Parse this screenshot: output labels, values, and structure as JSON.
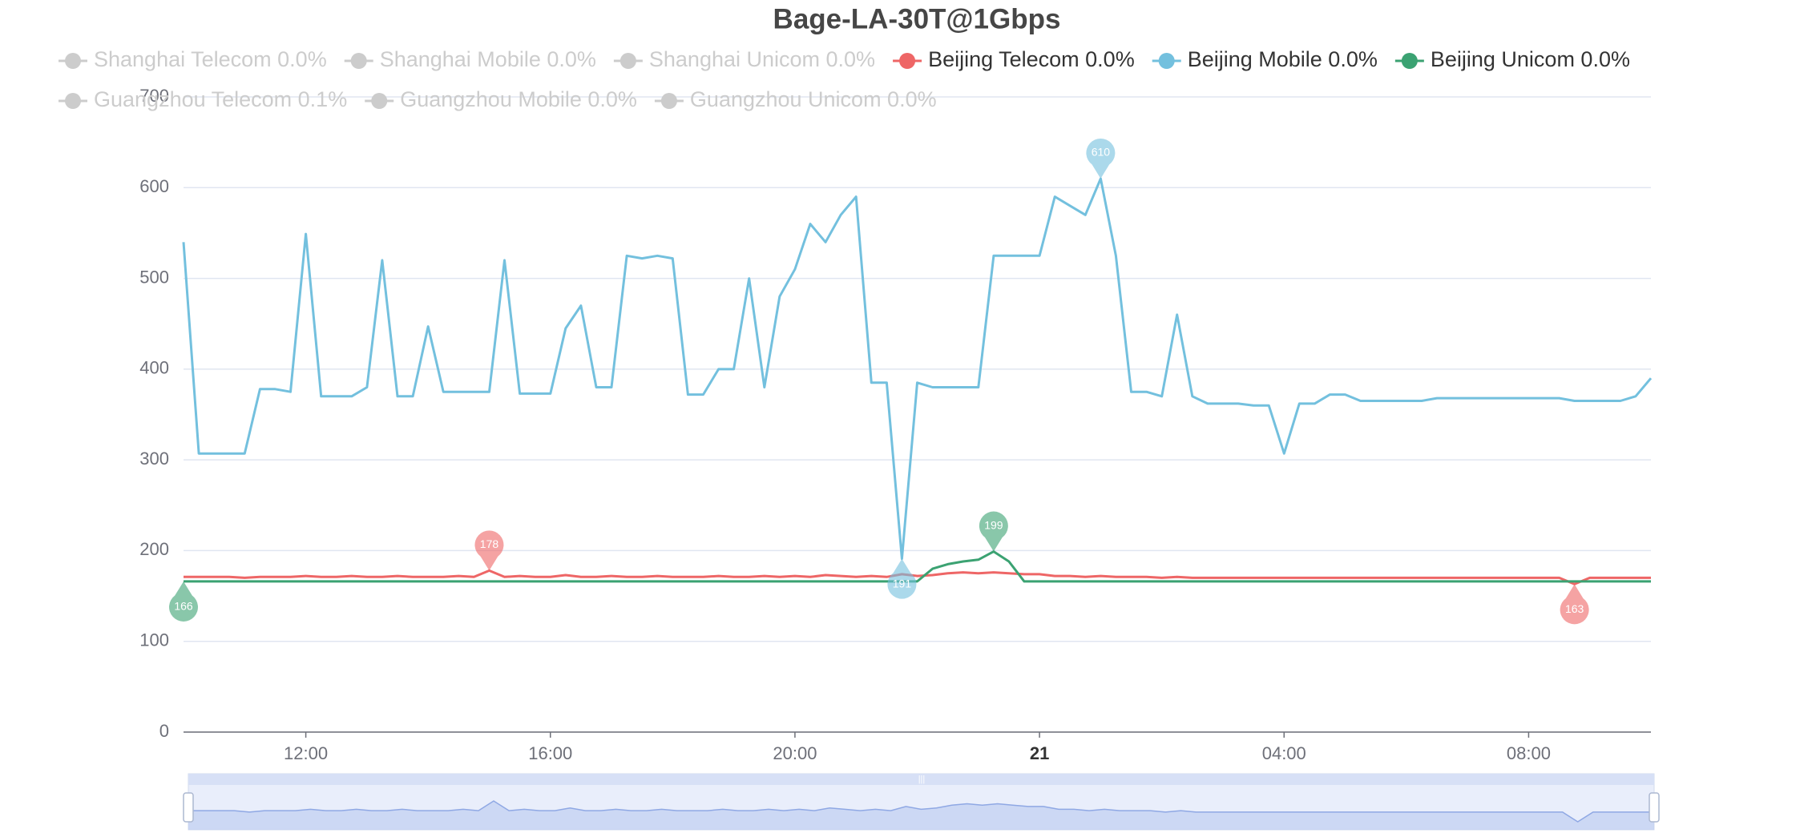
{
  "chart_data": {
    "type": "line",
    "title": "Bage-LA-30T@1Gbps",
    "x": [
      10,
      10.25,
      10.5,
      10.75,
      11,
      11.25,
      11.5,
      11.75,
      12,
      12.25,
      12.5,
      12.75,
      13,
      13.25,
      13.5,
      13.75,
      14,
      14.25,
      14.5,
      14.75,
      15,
      15.25,
      15.5,
      15.75,
      16,
      16.25,
      16.5,
      16.75,
      17,
      17.25,
      17.5,
      17.75,
      18,
      18.25,
      18.5,
      18.75,
      19,
      19.25,
      19.5,
      19.75,
      20,
      20.25,
      20.5,
      20.75,
      21,
      21.25,
      21.5,
      21.75,
      22,
      22.25,
      22.5,
      22.75,
      23,
      23.25,
      23.5,
      23.75,
      24,
      24.25,
      24.5,
      24.75,
      25,
      25.25,
      25.5,
      25.75,
      26,
      26.25,
      26.5,
      26.75,
      27,
      27.25,
      27.5,
      27.75,
      28,
      28.25,
      28.5,
      28.75,
      29,
      29.25,
      29.5,
      29.75,
      30,
      30.25,
      30.5,
      30.75,
      31,
      31.25,
      31.5,
      31.75,
      32,
      32.25,
      32.5,
      32.75,
      33,
      33.25,
      33.5,
      33.75,
      34
    ],
    "xlim": [
      10,
      34
    ],
    "xticks": [
      {
        "value": 12,
        "label": "12:00"
      },
      {
        "value": 16,
        "label": "16:00"
      },
      {
        "value": 20,
        "label": "20:00"
      },
      {
        "value": 24,
        "label": "21"
      },
      {
        "value": 28,
        "label": "04:00"
      },
      {
        "value": 32,
        "label": "08:00"
      }
    ],
    "ylim": [
      0,
      700
    ],
    "yticks": [
      0,
      100,
      200,
      300,
      400,
      500,
      600,
      700
    ],
    "grid": true,
    "hidden_color": "#cccccc",
    "series": [
      {
        "name": "Shanghai Telecom 0.0%",
        "visible": false
      },
      {
        "name": "Shanghai Mobile 0.0%",
        "visible": false
      },
      {
        "name": "Shanghai Unicom 0.0%",
        "visible": false
      },
      {
        "name": "Beijing Telecom 0.0%",
        "visible": true,
        "color": "#ee6666",
        "values": [
          171,
          171,
          171,
          171,
          170,
          171,
          171,
          171,
          172,
          171,
          171,
          172,
          171,
          171,
          172,
          171,
          171,
          171,
          172,
          171,
          178,
          171,
          172,
          171,
          171,
          173,
          171,
          171,
          172,
          171,
          171,
          172,
          171,
          171,
          171,
          172,
          171,
          171,
          172,
          171,
          172,
          171,
          173,
          172,
          171,
          172,
          171,
          174,
          172,
          173,
          175,
          176,
          175,
          176,
          175,
          174,
          174,
          172,
          172,
          171,
          172,
          171,
          171,
          171,
          170,
          171,
          170,
          170,
          170,
          170,
          170,
          170,
          170,
          170,
          170,
          170,
          170,
          170,
          170,
          170,
          170,
          170,
          170,
          170,
          170,
          170,
          170,
          170,
          170,
          170,
          170,
          163,
          170,
          170,
          170,
          170,
          170
        ],
        "markers": [
          {
            "type": "max",
            "x": 15,
            "value": 178
          },
          {
            "type": "min",
            "x": 32.75,
            "value": 163
          }
        ]
      },
      {
        "name": "Beijing Mobile 0.0%",
        "visible": true,
        "color": "#73c0de",
        "values": [
          540,
          307,
          307,
          307,
          307,
          378,
          378,
          375,
          549,
          370,
          370,
          370,
          380,
          520,
          370,
          370,
          447,
          375,
          375,
          375,
          375,
          520,
          373,
          373,
          373,
          445,
          470,
          380,
          380,
          525,
          522,
          525,
          522,
          372,
          372,
          400,
          400,
          500,
          380,
          480,
          510,
          560,
          540,
          570,
          590,
          385,
          385,
          191,
          385,
          380,
          380,
          380,
          380,
          525,
          525,
          525,
          525,
          590,
          580,
          570,
          610,
          525,
          375,
          375,
          370,
          460,
          370,
          362,
          362,
          362,
          360,
          360,
          307,
          362,
          362,
          372,
          372,
          365,
          365,
          365,
          365,
          365,
          368,
          368,
          368,
          368,
          368,
          368,
          368,
          368,
          368,
          365,
          365,
          365,
          365,
          370,
          390
        ],
        "markers": [
          {
            "type": "max",
            "x": 25,
            "value": 610
          },
          {
            "type": "min",
            "x": 21.75,
            "value": 191
          }
        ]
      },
      {
        "name": "Beijing Unicom 0.0%",
        "visible": true,
        "color": "#3ba272",
        "values": [
          166,
          166,
          166,
          166,
          166,
          166,
          166,
          166,
          166,
          166,
          166,
          166,
          166,
          166,
          166,
          166,
          166,
          166,
          166,
          166,
          166,
          166,
          166,
          166,
          166,
          166,
          166,
          166,
          166,
          166,
          166,
          166,
          166,
          166,
          166,
          166,
          166,
          166,
          166,
          166,
          166,
          166,
          166,
          166,
          166,
          166,
          166,
          166,
          166,
          180,
          185,
          188,
          190,
          199,
          188,
          166,
          166,
          166,
          166,
          166,
          166,
          166,
          166,
          166,
          166,
          166,
          166,
          166,
          166,
          166,
          166,
          166,
          166,
          166,
          166,
          166,
          166,
          166,
          166,
          166,
          166,
          166,
          166,
          166,
          166,
          166,
          166,
          166,
          166,
          166,
          166,
          166,
          166,
          166,
          166,
          166,
          166
        ],
        "markers": [
          {
            "type": "max",
            "x": 23.25,
            "value": 199
          },
          {
            "type": "min",
            "x": 10,
            "value": 166
          }
        ]
      },
      {
        "name": "Guangzhou Telecom 0.1%",
        "visible": false
      },
      {
        "name": "Guangzhou Mobile 0.0%",
        "visible": false
      },
      {
        "name": "Guangzhou Unicom 0.0%",
        "visible": false
      }
    ]
  }
}
